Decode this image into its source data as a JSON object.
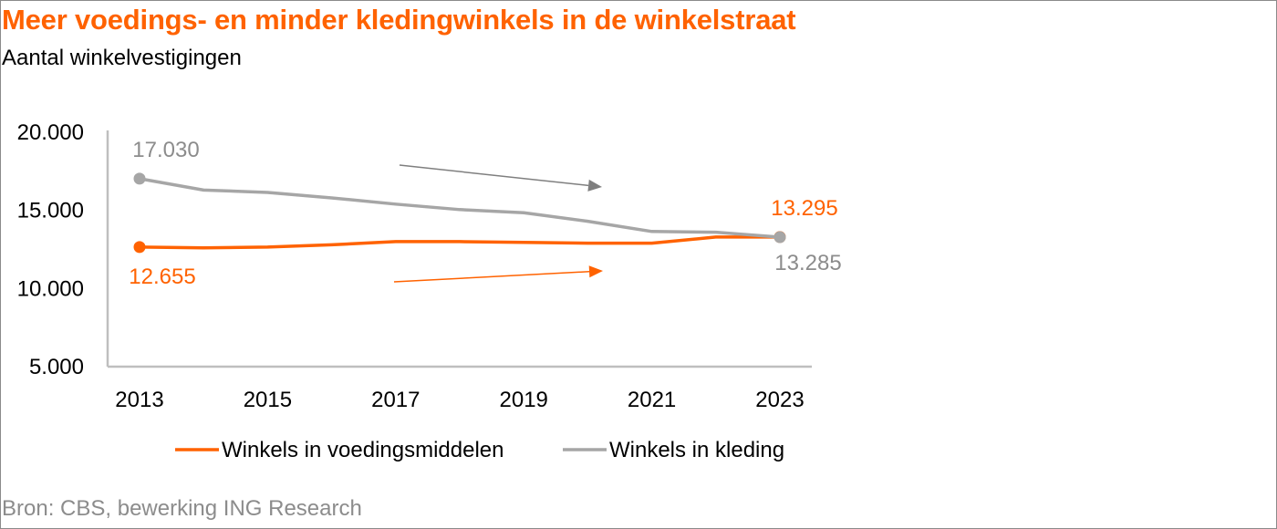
{
  "title": "Meer voedings- en minder kledingwinkels in de winkelstraat",
  "subtitle": "Aantal winkelvestigingen",
  "source": "Bron: CBS, bewerking ING Research",
  "colors": {
    "orange": "#ff6200",
    "grey": "#a6a6a6",
    "title": "#ff6200",
    "axis": "#bfbfbf"
  },
  "chart_data": {
    "type": "line",
    "x": [
      2013,
      2014,
      2015,
      2016,
      2017,
      2018,
      2019,
      2020,
      2021,
      2022,
      2023
    ],
    "x_tick_labels": [
      "2013",
      "2015",
      "2017",
      "2019",
      "2021",
      "2023"
    ],
    "y_tick_labels": [
      "20.000",
      "15.000",
      "10.000",
      "5.000"
    ],
    "y_ticks": [
      20000,
      15000,
      10000,
      5000
    ],
    "ylim": [
      5000,
      20000
    ],
    "grid": false,
    "legend_position": "bottom",
    "series": [
      {
        "name": "Winkels in voedingsmiddelen",
        "color": "#ff6200",
        "values": [
          12655,
          12600,
          12650,
          12800,
          13000,
          13000,
          12950,
          12900,
          12900,
          13295,
          13295
        ]
      },
      {
        "name": "Winkels in kleding",
        "color": "#a6a6a6",
        "values": [
          17030,
          16300,
          16150,
          15800,
          15400,
          15050,
          14850,
          14300,
          13650,
          13600,
          13285
        ]
      }
    ],
    "annotations": {
      "food_start_label": "12.655",
      "food_end_label": "13.295",
      "clothing_start_label": "17.030",
      "clothing_end_label": "13.285"
    }
  }
}
